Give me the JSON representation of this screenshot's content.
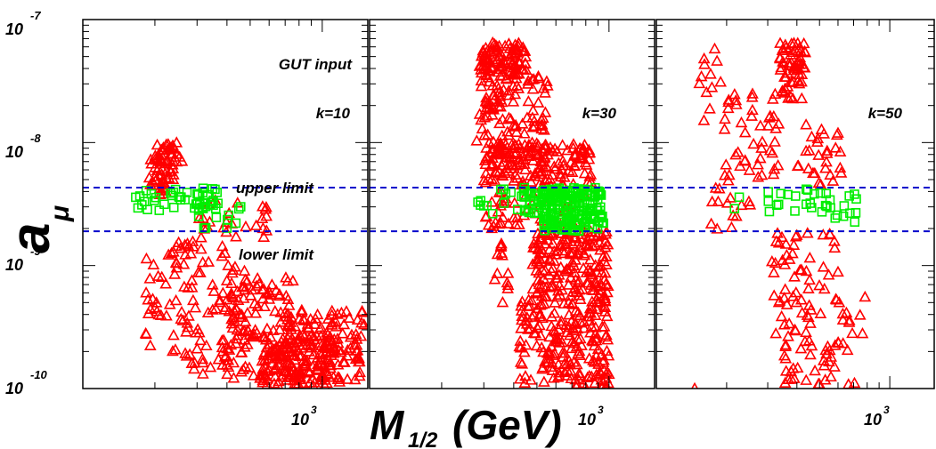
{
  "colors": {
    "background": "#ffffff",
    "frame": "#000000",
    "gut_input_marker": "#ff0000",
    "within_limits_marker": "#00ee00",
    "limit_lines": "#0000cc"
  },
  "chart_data": {
    "type": "scatter",
    "y_axis": {
      "label_main": "a",
      "label_sub": "μ",
      "scale": "log",
      "ylim": [
        1e-10,
        1e-07
      ],
      "tick_labels": [
        {
          "base": "10",
          "exp": "-7",
          "value": 1e-07
        },
        {
          "base": "10",
          "exp": "-8",
          "value": 1e-08
        },
        {
          "base": "10",
          "exp": "-9",
          "value": 1e-09
        },
        {
          "base": "10",
          "exp": "-10",
          "value": 1e-10
        }
      ]
    },
    "x_axis": {
      "label_main": "M",
      "label_sub": "1/2",
      "label_unit": "(GeV)",
      "scale": "log",
      "xlim": [
        100,
        1550
      ],
      "tick_label_base": "10",
      "tick_label_exp": "3",
      "tick_value": 1000
    },
    "limits": {
      "upper_label": "upper limit",
      "lower_label": "lower limit",
      "upper_value": 4.3e-09,
      "lower_value": 1.9e-09
    },
    "annotation_gut": "GUT input",
    "panels": [
      {
        "k_label": "k=10",
        "red_clusters": [
          {
            "x": [
              185,
              230
            ],
            "y": [
              3.5e-09,
              8e-09
            ],
            "n": 28
          },
          {
            "x": [
              200,
              260
            ],
            "y": [
              5e-09,
              1e-08
            ],
            "n": 40
          },
          {
            "x": [
              180,
              215
            ],
            "y": [
              2.2e-10,
              1.4e-09
            ],
            "n": 18
          },
          {
            "x": [
              220,
              320
            ],
            "y": [
              1.5e-10,
              1.6e-09
            ],
            "n": 40
          },
          {
            "x": [
              260,
              480
            ],
            "y": [
              1.3e-10,
              1.5e-09
            ],
            "n": 55
          },
          {
            "x": [
              380,
              760
            ],
            "y": [
              1.2e-10,
              8e-10
            ],
            "n": 120
          },
          {
            "x": [
              560,
              1100
            ],
            "y": [
              1.05e-10,
              2.8e-10
            ],
            "n": 120
          },
          {
            "x": [
              700,
              1500
            ],
            "y": [
              1.1e-10,
              4.5e-10
            ],
            "n": 130
          },
          {
            "x": [
              300,
              600
            ],
            "y": [
              1.6e-09,
              3.5e-09
            ],
            "n": 25
          }
        ],
        "green_clusters": [
          {
            "x": [
              165,
              240
            ],
            "y": [
              2.8e-09,
              4.2e-09
            ],
            "n": 14
          },
          {
            "x": [
              235,
              380
            ],
            "y": [
              2.9e-09,
              4.3e-09
            ],
            "n": 30
          },
          {
            "x": [
              300,
              470
            ],
            "y": [
              2e-09,
              3.2e-09
            ],
            "n": 14
          }
        ]
      },
      {
        "k_label": "k=30",
        "red_clusters": [
          {
            "x": [
              290,
              450
            ],
            "y": [
              3.5e-08,
              6.5e-08
            ],
            "n": 85
          },
          {
            "x": [
              280,
              330
            ],
            "y": [
              1e-08,
              6.5e-08
            ],
            "n": 35
          },
          {
            "x": [
              320,
              560
            ],
            "y": [
              8e-09,
              3.5e-08
            ],
            "n": 90
          },
          {
            "x": [
              300,
              850
            ],
            "y": [
              4.4e-09,
              1e-08
            ],
            "n": 150
          },
          {
            "x": [
              320,
              800
            ],
            "y": [
              2e-09,
              4.4e-09
            ],
            "n": 40
          },
          {
            "x": [
              480,
              1000
            ],
            "y": [
              6e-10,
              1.9e-09
            ],
            "n": 170
          },
          {
            "x": [
              330,
              380
            ],
            "y": [
              5e-10,
              1.5e-09
            ],
            "n": 12
          },
          {
            "x": [
              420,
              1000
            ],
            "y": [
              1e-10,
              6e-10
            ],
            "n": 210
          },
          {
            "x": [
              300,
              400
            ],
            "y": [
              1.5e-09,
              3e-09
            ],
            "n": 10
          }
        ],
        "green_clusters": [
          {
            "x": [
              280,
              420
            ],
            "y": [
              2.5e-09,
              4.2e-09
            ],
            "n": 12
          },
          {
            "x": [
              420,
              560
            ],
            "y": [
              2.6e-09,
              4.3e-09
            ],
            "n": 30
          },
          {
            "x": [
              520,
              950
            ],
            "y": [
              1.9e-09,
              4.3e-09
            ],
            "n": 190
          }
        ]
      },
      {
        "k_label": "k=50",
        "red_clusters": [
          {
            "x": [
              330,
              440
            ],
            "y": [
              3.8e-08,
              6.5e-08
            ],
            "n": 40
          },
          {
            "x": [
              345,
              420
            ],
            "y": [
              2.2e-08,
              4e-08
            ],
            "n": 20
          },
          {
            "x": [
              150,
              190
            ],
            "y": [
              1.5e-08,
              6e-08
            ],
            "n": 12
          },
          {
            "x": [
              190,
              340
            ],
            "y": [
              5e-09,
              2.5e-08
            ],
            "n": 45
          },
          {
            "x": [
              390,
              620
            ],
            "y": [
              4.4e-09,
              1.5e-08
            ],
            "n": 28
          },
          {
            "x": [
              170,
              260
            ],
            "y": [
              1.5e-09,
              5e-09
            ],
            "n": 15
          },
          {
            "x": [
              310,
              620
            ],
            "y": [
              5e-10,
              1.9e-09
            ],
            "n": 40
          },
          {
            "x": [
              320,
              800
            ],
            "y": [
              1.8e-10,
              6e-10
            ],
            "n": 45
          },
          {
            "x": [
              340,
              720
            ],
            "y": [
              1e-10,
              2.2e-10
            ],
            "n": 25
          },
          {
            "x": [
              140,
              160
            ],
            "y": [
              1e-10,
              1.2e-10
            ],
            "n": 1
          }
        ],
        "green_clusters": [
          {
            "x": [
              210,
              280
            ],
            "y": [
              2.9e-09,
              3.6e-09
            ],
            "n": 2
          },
          {
            "x": [
              300,
              560
            ],
            "y": [
              2.7e-09,
              4.2e-09
            ],
            "n": 22
          },
          {
            "x": [
              580,
              720
            ],
            "y": [
              2.2e-09,
              4.2e-09
            ],
            "n": 10
          }
        ]
      }
    ]
  }
}
